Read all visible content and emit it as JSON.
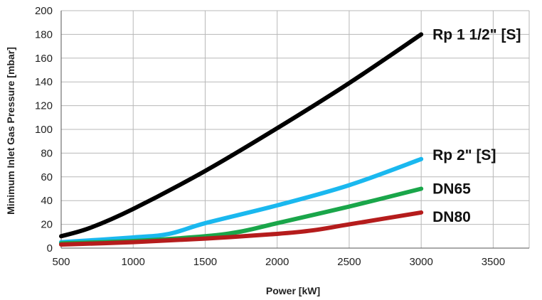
{
  "chart_data": {
    "type": "line",
    "title": "",
    "xlabel": "Power [kW]",
    "ylabel": "Minimum Inlet Gas Pressure [mbar]",
    "xlim": [
      500,
      3750
    ],
    "ylim": [
      0,
      200
    ],
    "xticks": [
      500,
      1000,
      1500,
      2000,
      2500,
      3000,
      3500
    ],
    "yticks": [
      0,
      20,
      40,
      60,
      80,
      100,
      120,
      140,
      160,
      180,
      200
    ],
    "grid": true,
    "series": [
      {
        "name": "Rp 1 1/2\" [S]",
        "color": "#000000",
        "x": [
          500,
          700,
          1000,
          1500,
          2000,
          2500,
          3000
        ],
        "y": [
          10,
          17,
          33,
          65,
          101,
          139,
          180
        ]
      },
      {
        "name": "Rp  2\" [S]",
        "color": "#1ab8ef",
        "x": [
          500,
          1000,
          1250,
          1500,
          2000,
          2500,
          3000
        ],
        "y": [
          5,
          9,
          12,
          21,
          36,
          53,
          75
        ]
      },
      {
        "name": "DN65",
        "color": "#1aa64a",
        "x": [
          500,
          1000,
          1500,
          1750,
          2000,
          2500,
          3000
        ],
        "y": [
          4,
          6,
          10,
          14,
          21,
          35,
          50
        ]
      },
      {
        "name": "DN80",
        "color": "#b51c1c",
        "x": [
          500,
          1000,
          1500,
          2000,
          2250,
          2500,
          3000
        ],
        "y": [
          3,
          5,
          8,
          12,
          15,
          20,
          30
        ]
      }
    ]
  }
}
